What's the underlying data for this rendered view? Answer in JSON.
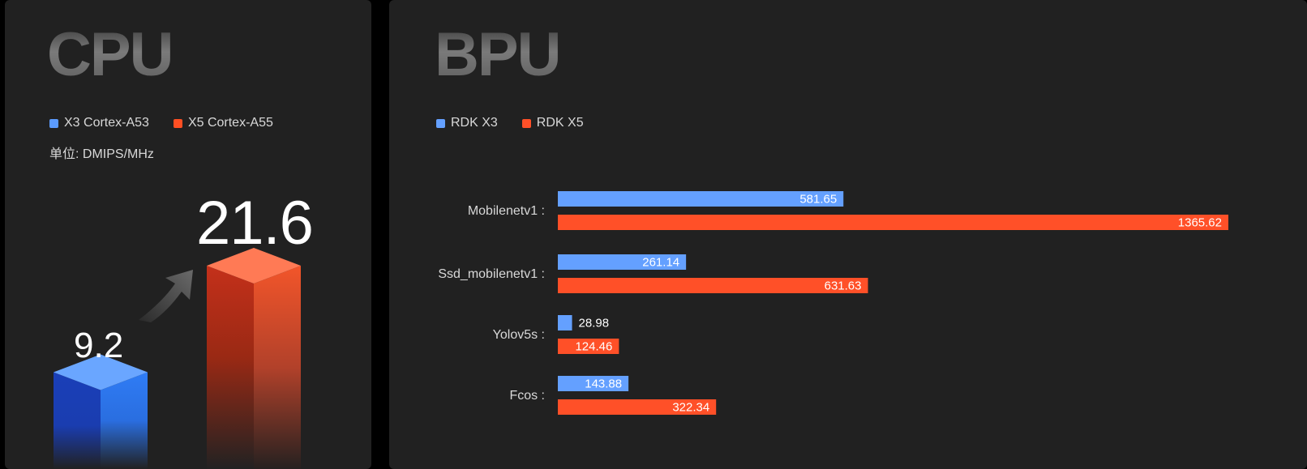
{
  "chart_data": [
    {
      "type": "bar",
      "title": "CPU",
      "unit_label": "单位: DMIPS/MHz",
      "series": [
        {
          "name": "X3 Cortex-A53",
          "color": "#5b9bff",
          "value": 9.2,
          "value_label": "9.2"
        },
        {
          "name": "X5 Cortex-A55",
          "color": "#ff4f23",
          "value": 21.6,
          "value_label": "21.6"
        }
      ]
    },
    {
      "type": "bar",
      "orientation": "horizontal",
      "title": "BPU",
      "categories": [
        "Mobilenetv1 :",
        "Ssd_mobilenetv1 :",
        "Yolov5s :",
        "Fcos :"
      ],
      "series": [
        {
          "name": "RDK X3",
          "color": "#64a0ff",
          "values": [
            581.65,
            261.14,
            28.98,
            143.88
          ]
        },
        {
          "name": "RDK X5",
          "color": "#ff5028",
          "values": [
            1365.62,
            631.63,
            124.46,
            322.34
          ]
        }
      ],
      "xlim": [
        0,
        1365.62
      ]
    }
  ]
}
